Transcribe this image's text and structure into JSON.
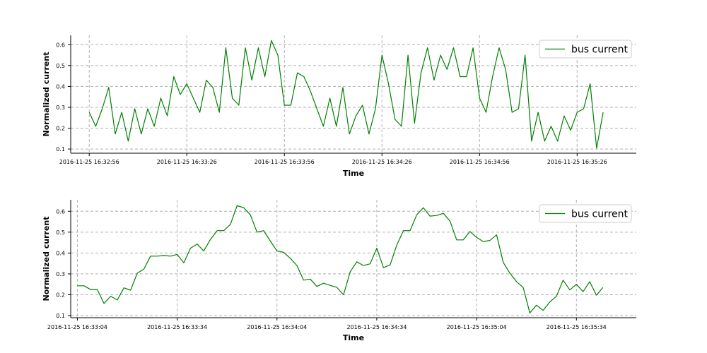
{
  "colors": {
    "series": "#008000",
    "grid": "#b0b0b0",
    "axis": "#000000"
  },
  "chart_data": [
    {
      "type": "line",
      "xlabel": "Time",
      "ylabel": "Normalized current",
      "x_start": "2016-11-25 16:32:56",
      "x_step_seconds": 2,
      "xlim_seconds": [
        -5.7,
        168.2
      ],
      "x_tick_seconds": [
        0,
        30,
        60,
        90,
        120,
        150
      ],
      "x_tick_labels": [
        "2016-11-25 16:32:56",
        "2016-11-25 16:33:26",
        "2016-11-25 16:33:56",
        "2016-11-25 16:34:26",
        "2016-11-25 16:34:56",
        "2016-11-25 16:35:26"
      ],
      "ylim": [
        0.08,
        0.645
      ],
      "y_ticks": [
        0.1,
        0.2,
        0.3,
        0.4,
        0.5,
        0.6
      ],
      "y_tick_labels": [
        "0.1",
        "0.2",
        "0.3",
        "0.4",
        "0.5",
        "0.6"
      ],
      "grid": true,
      "legend_position": "top-right",
      "series": [
        {
          "name": "bus current",
          "values": [
            0.276,
            0.209,
            0.293,
            0.395,
            0.172,
            0.276,
            0.138,
            0.293,
            0.172,
            0.293,
            0.209,
            0.344,
            0.259,
            0.447,
            0.361,
            0.413,
            0.344,
            0.276,
            0.43,
            0.395,
            0.276,
            0.585,
            0.344,
            0.31,
            0.585,
            0.43,
            0.585,
            0.447,
            0.62,
            0.55,
            0.31,
            0.31,
            0.465,
            0.447,
            0.378,
            0.293,
            0.209,
            0.344,
            0.209,
            0.395,
            0.172,
            0.259,
            0.31,
            0.172,
            0.293,
            0.55,
            0.413,
            0.242,
            0.209,
            0.55,
            0.224,
            0.465,
            0.585,
            0.43,
            0.55,
            0.482,
            0.585,
            0.447,
            0.447,
            0.585,
            0.344,
            0.276,
            0.447,
            0.585,
            0.482,
            0.276,
            0.293,
            0.55,
            0.138,
            0.276,
            0.138,
            0.209,
            0.138,
            0.259,
            0.19,
            0.276,
            0.293,
            0.413,
            0.104,
            0.276
          ]
        }
      ]
    },
    {
      "type": "line",
      "xlabel": "Time",
      "ylabel": "Normalized current",
      "x_start": "2016-11-25 16:33:04",
      "x_step_seconds": 2,
      "xlim_seconds": [
        -2,
        168
      ],
      "x_tick_seconds": [
        0,
        30,
        60,
        90,
        120,
        150
      ],
      "x_tick_labels": [
        "2016-11-25 16:33:04",
        "2016-11-25 16:33:34",
        "2016-11-25 16:34:04",
        "2016-11-25 16:34:34",
        "2016-11-25 16:35:04",
        "2016-11-25 16:35:34"
      ],
      "ylim": [
        0.09,
        0.655
      ],
      "y_ticks": [
        0.1,
        0.2,
        0.3,
        0.4,
        0.5,
        0.6
      ],
      "y_tick_labels": [
        "0.1",
        "0.2",
        "0.3",
        "0.4",
        "0.5",
        "0.6"
      ],
      "grid": true,
      "legend_position": "top-right",
      "series": [
        {
          "name": "bus current",
          "values": [
            0.243,
            0.243,
            0.225,
            0.225,
            0.158,
            0.193,
            0.175,
            0.233,
            0.222,
            0.303,
            0.323,
            0.385,
            0.385,
            0.388,
            0.385,
            0.393,
            0.353,
            0.423,
            0.443,
            0.41,
            0.465,
            0.507,
            0.507,
            0.537,
            0.627,
            0.617,
            0.583,
            0.5,
            0.507,
            0.457,
            0.41,
            0.403,
            0.375,
            0.34,
            0.27,
            0.275,
            0.24,
            0.255,
            0.245,
            0.235,
            0.2,
            0.31,
            0.358,
            0.34,
            0.348,
            0.423,
            0.33,
            0.343,
            0.438,
            0.507,
            0.507,
            0.583,
            0.617,
            0.577,
            0.58,
            0.59,
            0.553,
            0.463,
            0.463,
            0.503,
            0.475,
            0.455,
            0.46,
            0.487,
            0.355,
            0.303,
            0.263,
            0.235,
            0.113,
            0.15,
            0.125,
            0.165,
            0.193,
            0.27,
            0.223,
            0.25,
            0.215,
            0.263,
            0.198,
            0.235
          ]
        }
      ]
    }
  ]
}
